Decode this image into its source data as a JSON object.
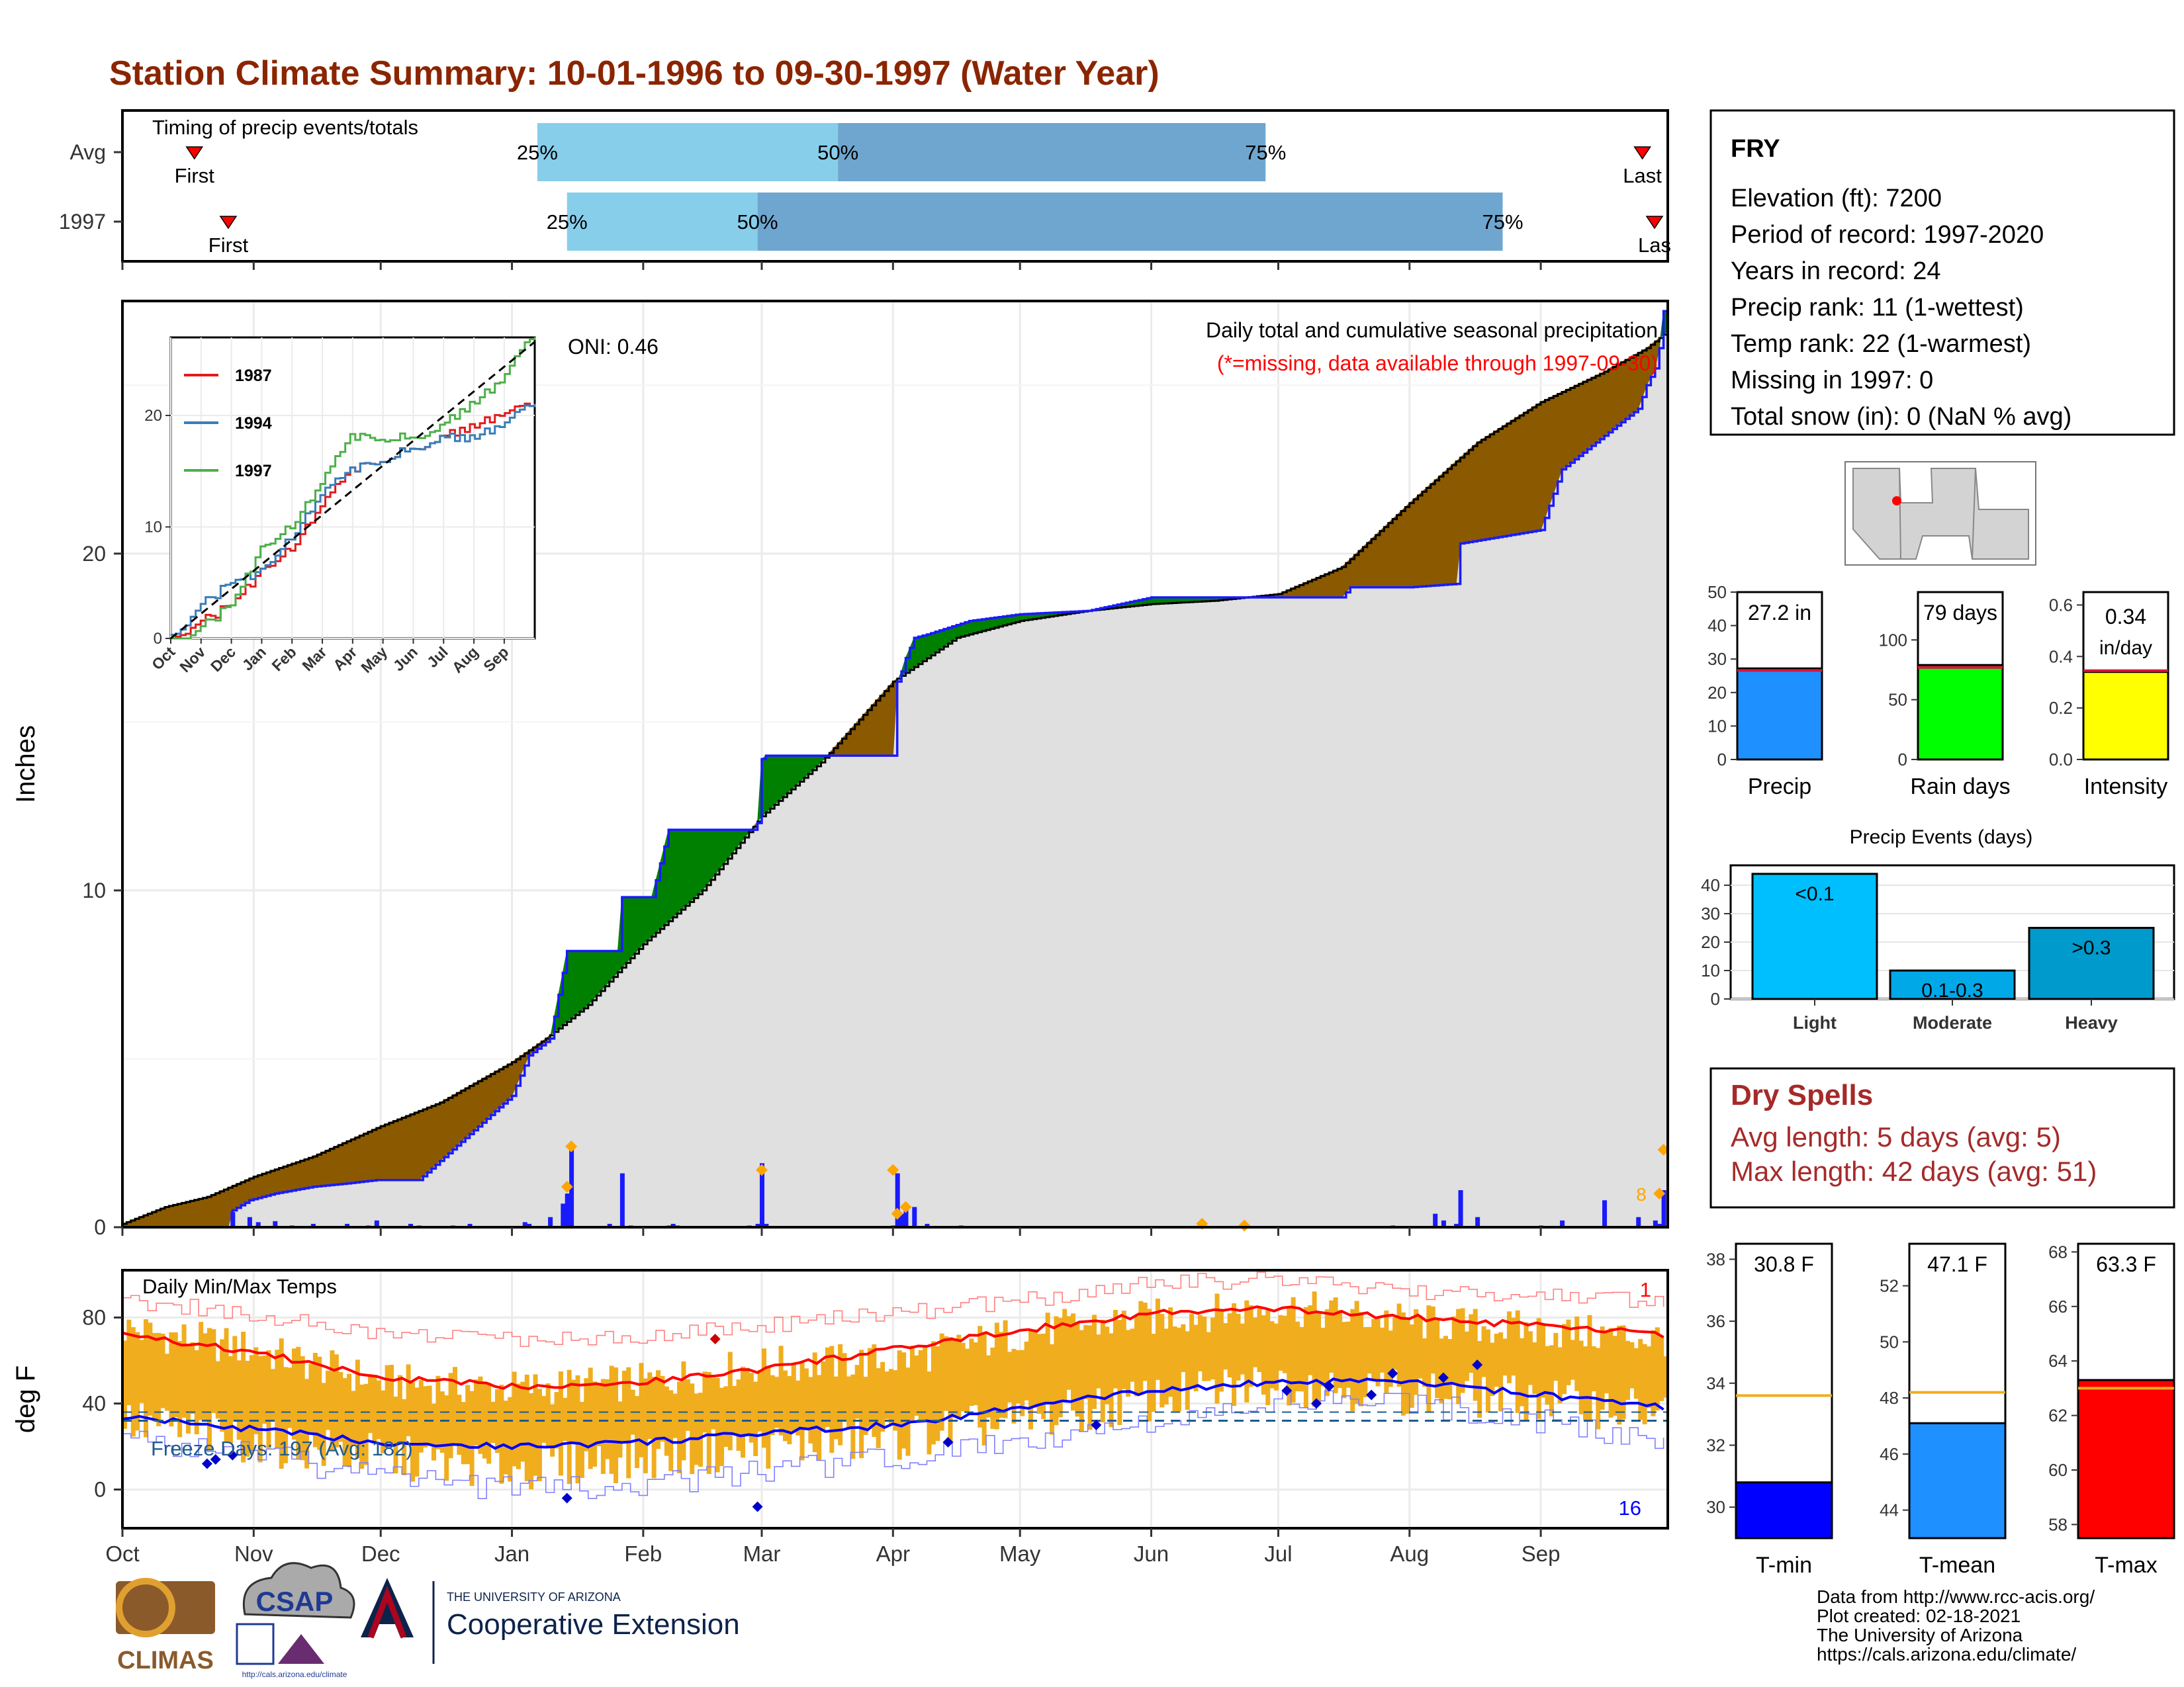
{
  "title": "Station Climate Summary: 10-01-1996 to 09-30-1997 (Water Year)",
  "colors": {
    "title": "#8b2500",
    "light_blue": "#87ceeb",
    "mid_blue": "#6fa6cf",
    "brown": "#8b5a00",
    "green": "#008000",
    "gray_fill": "#e0e0e0",
    "cum_blue": "#1a1aff",
    "orange": "#f0ad1e",
    "red": "#ff0000",
    "blue": "#0000ff",
    "dry_red": "#a52a2a"
  },
  "timing": {
    "label": "Timing of precip events/totals",
    "rows": [
      {
        "name": "Avg",
        "first_label": "First",
        "last_label": "Last",
        "first_day": 17,
        "last_day": 359,
        "p25_day": 98,
        "p50_day": 169,
        "p75_day": 270,
        "p25_label": "25%",
        "p50_label": "50%",
        "p75_label": "75%"
      },
      {
        "name": "1997",
        "first_label": "First",
        "last_label": "Las",
        "first_day": 25,
        "last_day": 366,
        "p25_day": 105,
        "p50_day": 150,
        "p75_day": 326,
        "p25_label": "25%",
        "p50_label": "50%",
        "p75_label": "75%"
      }
    ]
  },
  "months": [
    "Oct",
    "Nov",
    "Dec",
    "Jan",
    "Feb",
    "Mar",
    "Apr",
    "May",
    "Jun",
    "Jul",
    "Aug",
    "Sep"
  ],
  "month_days": [
    0,
    31,
    61,
    92,
    123,
    151,
    182,
    212,
    243,
    273,
    304,
    335
  ],
  "chart_data": [
    {
      "type": "area",
      "name": "cumulative-precip",
      "title": "Daily total and cumulative seasonal precipitation",
      "subtitle": "(*=missing, data available through 1997-09-30)",
      "oni": "ONI: 0.46",
      "ylabel": "Inches",
      "ylim": [
        0,
        27.5
      ],
      "yticks": [
        0,
        10,
        20
      ],
      "avg_cumulative": {
        "x": [
          0,
          10,
          20,
          31,
          45,
          61,
          75,
          92,
          100,
          110,
          123,
          137,
          151,
          165,
          182,
          197,
          212,
          228,
          243,
          258,
          273,
          288,
          304,
          320,
          335,
          350,
          360,
          365
        ],
        "y": [
          0.1,
          0.6,
          0.9,
          1.5,
          2.1,
          3.0,
          3.7,
          4.9,
          5.6,
          6.6,
          8.4,
          10.0,
          12.2,
          13.8,
          16.2,
          17.5,
          18.0,
          18.3,
          18.5,
          18.6,
          18.8,
          19.6,
          21.5,
          23.3,
          24.5,
          25.4,
          26.1,
          26.6
        ]
      },
      "observed_cumulative": {
        "x": [
          0,
          25,
          26,
          30,
          36,
          45,
          53,
          60,
          70,
          92,
          96,
          101,
          105,
          106,
          117,
          118,
          125,
          129,
          137,
          149,
          150,
          151,
          152,
          182,
          183,
          184,
          185,
          187,
          190,
          200,
          212,
          228,
          243,
          258,
          273,
          288,
          290,
          304,
          315,
          316,
          335,
          340,
          350,
          358,
          360,
          362,
          363,
          364,
          365
        ],
        "y": [
          0,
          0,
          0.5,
          0.8,
          1.0,
          1.2,
          1.3,
          1.4,
          1.4,
          3.9,
          5.1,
          5.6,
          8.2,
          8.2,
          8.2,
          9.8,
          9.8,
          11.8,
          11.8,
          11.8,
          12.0,
          13.9,
          14.0,
          14.0,
          16.2,
          16.5,
          16.9,
          17.5,
          17.6,
          18.0,
          18.2,
          18.3,
          18.7,
          18.7,
          18.7,
          18.7,
          19.0,
          19.0,
          19.1,
          20.3,
          20.7,
          22.5,
          23.5,
          24.3,
          25.0,
          25.5,
          26.1,
          27.2,
          27.2
        ]
      },
      "daily_bars": {
        "x": [
          25,
          26,
          30,
          32,
          36,
          40,
          45,
          53,
          58,
          60,
          68,
          70,
          78,
          82,
          95,
          96,
          101,
          104,
          105,
          106,
          115,
          118,
          120,
          129,
          130,
          131,
          148,
          150,
          151,
          152,
          182,
          183,
          184,
          185,
          187,
          190,
          198,
          255,
          300,
          310,
          312,
          315,
          316,
          320,
          335,
          340,
          350,
          358,
          362,
          363,
          364
        ],
        "y": [
          0.02,
          0.45,
          0.3,
          0.15,
          0.18,
          0.05,
          0.1,
          0.1,
          0.05,
          0.2,
          0.1,
          0.05,
          0.05,
          0.1,
          0.15,
          0.1,
          0.3,
          0.7,
          1.0,
          2.4,
          0.1,
          1.6,
          0.05,
          0.05,
          0.1,
          0.05,
          0.05,
          0.1,
          1.9,
          0.1,
          0.05,
          1.6,
          0.4,
          0.7,
          0.6,
          0.1,
          0.05,
          0.05,
          0.05,
          0.4,
          0.2,
          0.1,
          1.1,
          0.3,
          0.05,
          0.2,
          0.8,
          0.3,
          0.2,
          0.1,
          1.1
        ]
      },
      "markers": {
        "x": [
          106,
          105,
          151,
          182,
          185,
          183,
          255,
          265,
          364,
          363
        ],
        "y": [
          2.4,
          1.2,
          1.7,
          1.7,
          0.6,
          0.4,
          0.1,
          0.05,
          2.3,
          1.0
        ]
      },
      "missing_marker_label": "8"
    },
    {
      "type": "line",
      "name": "inset-cumulative",
      "series": [
        {
          "name": "1987",
          "color": "#e31a1c",
          "x": [
            0,
            30,
            60,
            90,
            120,
            150,
            180,
            210,
            240,
            270,
            300,
            330,
            360
          ],
          "y": [
            0,
            1.5,
            3,
            6,
            8,
            12,
            15,
            16,
            17,
            18,
            19,
            20,
            21
          ]
        },
        {
          "name": "1994",
          "color": "#377eb8",
          "x": [
            0,
            30,
            60,
            90,
            120,
            150,
            180,
            210,
            240,
            270,
            300,
            330,
            360
          ],
          "y": [
            0,
            3,
            5,
            6,
            9,
            13,
            15,
            16,
            17,
            18,
            18,
            19,
            21
          ]
        },
        {
          "name": "1997",
          "color": "#4daf4a",
          "x": [
            0,
            30,
            60,
            90,
            120,
            150,
            180,
            210,
            240,
            270,
            300,
            330,
            360
          ],
          "y": [
            -1,
            1,
            3,
            8,
            10,
            14,
            18,
            18,
            18,
            19,
            21,
            23,
            27
          ]
        }
      ],
      "xticks": [
        "Oct",
        "Nov",
        "Dec",
        "Jan",
        "Feb",
        "Mar",
        "Apr",
        "May",
        "Jun",
        "Jul",
        "Aug",
        "Sep"
      ],
      "yticks": [
        0,
        10,
        20
      ],
      "ylim": [
        0,
        27
      ]
    },
    {
      "type": "line",
      "name": "daily-temps",
      "title": "Daily Min/Max Temps",
      "ylabel": "deg F",
      "ylim": [
        -18,
        102
      ],
      "yticks": [
        0,
        40,
        80
      ],
      "freeze_label": "Freeze Days: 197 (Avg: 182)",
      "freeze_line": 32,
      "avg_line": 36,
      "max_count_label": "1",
      "min_count_label": "16",
      "avg_max": {
        "x": [
          0,
          31,
          61,
          92,
          123,
          151,
          182,
          212,
          243,
          273,
          304,
          335,
          365
        ],
        "y": [
          72,
          64,
          52,
          48,
          50,
          56,
          65,
          74,
          82,
          84,
          80,
          76,
          72
        ]
      },
      "avg_min": {
        "x": [
          0,
          31,
          61,
          92,
          123,
          151,
          182,
          212,
          243,
          273,
          304,
          335,
          365
        ],
        "y": [
          34,
          28,
          22,
          20,
          22,
          26,
          30,
          38,
          46,
          50,
          50,
          44,
          38
        ]
      },
      "record_max": {
        "x": [
          0,
          31,
          61,
          92,
          123,
          151,
          182,
          212,
          243,
          273,
          304,
          335,
          365
        ],
        "y": [
          88,
          82,
          72,
          70,
          72,
          76,
          82,
          88,
          96,
          98,
          92,
          90,
          88
        ]
      },
      "record_min": {
        "x": [
          0,
          31,
          61,
          92,
          123,
          151,
          182,
          212,
          243,
          273,
          304,
          335,
          365
        ],
        "y": [
          24,
          16,
          6,
          0,
          2,
          8,
          14,
          22,
          32,
          40,
          40,
          32,
          22
        ]
      },
      "daily_max": {
        "x": [
          0,
          31,
          61,
          92,
          123,
          151,
          182,
          212,
          243,
          273,
          304,
          335,
          365
        ],
        "y": [
          75,
          65,
          50,
          47,
          50,
          58,
          60,
          73,
          80,
          85,
          78,
          74,
          70
        ]
      },
      "daily_min": {
        "x": [
          0,
          31,
          61,
          92,
          123,
          151,
          182,
          212,
          243,
          273,
          304,
          335,
          365
        ],
        "y": [
          32,
          22,
          15,
          10,
          15,
          20,
          24,
          32,
          42,
          50,
          45,
          42,
          35
        ]
      }
    },
    {
      "type": "bar",
      "name": "precip-summary",
      "categories": [
        "Precip",
        "Rain days",
        "Intensity"
      ],
      "values": [
        27.2,
        79,
        0.34
      ],
      "avg": [
        26.6,
        77,
        0.345
      ],
      "labels": [
        "27.2 in",
        "79 days",
        "0.34 in/day"
      ],
      "ylims": [
        [
          0,
          50
        ],
        [
          0,
          140
        ],
        [
          0,
          0.65
        ]
      ],
      "yticks": [
        [
          0,
          10,
          20,
          30,
          40,
          50
        ],
        [
          0,
          50,
          100
        ],
        [
          0.0,
          0.2,
          0.4,
          0.6
        ]
      ],
      "colors": [
        "#1e90ff",
        "#00ff00",
        "#ffff00"
      ]
    },
    {
      "type": "bar",
      "name": "precip-events",
      "title": "Precip Events (days)",
      "categories": [
        "Light",
        "Moderate",
        "Heavy"
      ],
      "values": [
        44,
        10,
        25
      ],
      "labels": [
        "<0.1",
        "0.1-0.3",
        ">0.3"
      ],
      "ylim": [
        0,
        47
      ],
      "yticks": [
        0,
        10,
        20,
        30,
        40
      ],
      "colors": [
        "#00bfff",
        "#00a8e8",
        "#009acd"
      ]
    },
    {
      "type": "bar",
      "name": "temp-summary",
      "categories": [
        "T-min",
        "T-mean",
        "T-max"
      ],
      "values": [
        30.8,
        47.1,
        63.3
      ],
      "avg": [
        33.6,
        48.2,
        63.0
      ],
      "labels": [
        "30.8 F",
        "47.1 F",
        "63.3 F"
      ],
      "ylims": [
        [
          29,
          38.5
        ],
        [
          43,
          53.5
        ],
        [
          57.5,
          68.3
        ]
      ],
      "yticks": [
        [
          30,
          32,
          34,
          36,
          38
        ],
        [
          44,
          46,
          48,
          50,
          52
        ],
        [
          58,
          60,
          62,
          64,
          66,
          68
        ]
      ],
      "colors": [
        "#0000ff",
        "#1e90ff",
        "#ff0000"
      ]
    }
  ],
  "station": {
    "name": "FRY",
    "lines": [
      "Elevation (ft): 7200",
      "Period of record: 1997-2020",
      "Years in record: 24",
      "Precip rank: 11 (1-wettest)",
      "Temp rank: 22 (1-warmest)",
      "Missing in 1997: 0",
      "Total snow (in): 0 (NaN % avg)"
    ]
  },
  "dry_spells": {
    "title": "Dry Spells",
    "avg": "Avg length: 5 days (avg: 5)",
    "max": "Max length: 42 days (avg: 51)"
  },
  "credits": [
    "Data from http://www.rcc-acis.org/",
    "Plot created: 02-18-2021",
    "The University of Arizona",
    "https://cals.arizona.edu/climate/"
  ],
  "logos": {
    "climas": "CLIMAS",
    "csap": "CSAP",
    "csap_url": "http://cals.arizona.edu/climate",
    "ua_small": "THE UNIVERSITY OF ARIZONA",
    "ua_big": "Cooperative Extension"
  }
}
